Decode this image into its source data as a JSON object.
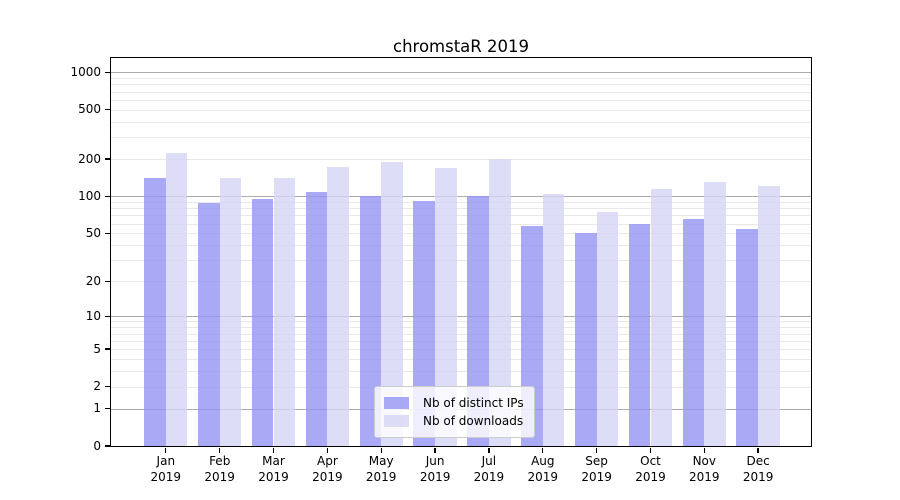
{
  "figure": {
    "title": "chromstaR 2019"
  },
  "chart_data": {
    "type": "bar",
    "title": "chromstaR 2019",
    "categories": [
      "Jan 2019",
      "Feb 2019",
      "Mar 2019",
      "Apr 2019",
      "May 2019",
      "Jun 2019",
      "Jul 2019",
      "Aug 2019",
      "Sep 2019",
      "Oct 2019",
      "Nov 2019",
      "Dec 2019"
    ],
    "series": [
      {
        "name": "Nb of distinct IPs",
        "color": "#9494f2",
        "alpha": 0.8,
        "values": [
          140,
          88,
          95,
          108,
          100,
          91,
          101,
          57,
          50,
          60,
          66,
          54
        ]
      },
      {
        "name": "Nb of downloads",
        "color": "#d5d5f5",
        "alpha": 0.8,
        "values": [
          222,
          140,
          142,
          174,
          191,
          170,
          201,
          104,
          75,
          115,
          131,
          122
        ]
      }
    ],
    "yscale": "log1p",
    "ylim": [
      0,
      1300
    ],
    "yticks": [
      0,
      1,
      2,
      5,
      10,
      20,
      50,
      100,
      200,
      500,
      1000
    ],
    "major_gridlines": [
      1,
      10,
      100,
      1000
    ],
    "minor_gridlines": [
      2,
      3,
      4,
      5,
      6,
      7,
      8,
      9,
      20,
      30,
      40,
      50,
      60,
      70,
      80,
      90,
      200,
      300,
      400,
      500,
      600,
      700,
      800,
      900
    ],
    "grid": true,
    "legend_position": "lower center",
    "colors": {
      "bar_distinct_ips_on_white": "#aaaaf5",
      "bar_downloads_on_white": "#dedef6",
      "major_grid": "#ababab",
      "minor_grid": "#e8e8e8",
      "axis": "#000000",
      "legend_border": "#cccccc"
    }
  }
}
